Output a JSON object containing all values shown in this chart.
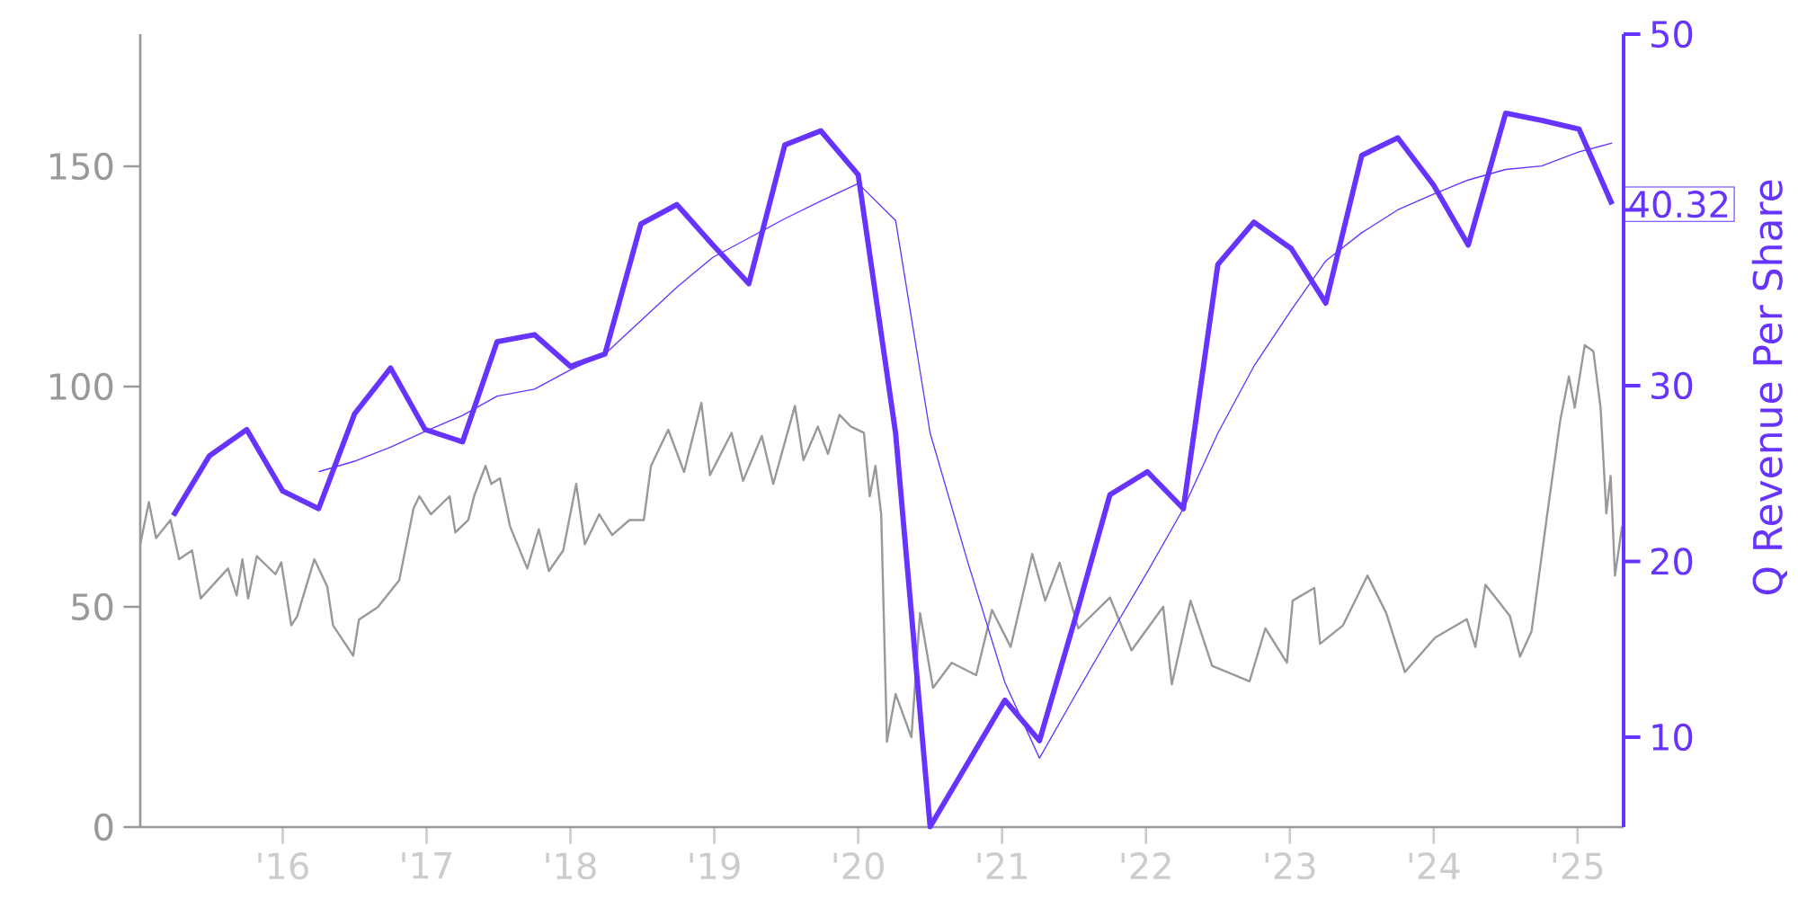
{
  "chart_data": {
    "type": "line",
    "y2label": "Q Revenue Per Share",
    "xlim": [
      2015.01,
      2025.32
    ],
    "ylim": [
      0,
      180
    ],
    "y2lim": [
      4.88,
      50
    ],
    "xticks": [
      {
        "value": 2016,
        "label": "'16"
      },
      {
        "value": 2017,
        "label": "'17"
      },
      {
        "value": 2018,
        "label": "'18"
      },
      {
        "value": 2019,
        "label": "'19"
      },
      {
        "value": 2020,
        "label": "'20"
      },
      {
        "value": 2021,
        "label": "'21"
      },
      {
        "value": 2022,
        "label": "'22"
      },
      {
        "value": 2023,
        "label": "'23"
      },
      {
        "value": 2024,
        "label": "'24"
      },
      {
        "value": 2025,
        "label": "'25"
      }
    ],
    "yticks": [
      0,
      50,
      100,
      150
    ],
    "y2ticks": [
      10,
      20,
      30,
      {
        "value": 40,
        "label": null
      },
      50
    ],
    "marker": "none",
    "line_style": "solid",
    "grid": false,
    "series": [
      {
        "axis": "y",
        "color": "#999999",
        "x": [
          2015.01,
          2015.07,
          2015.12,
          2015.22,
          2015.28,
          2015.37,
          2015.43,
          2015.62,
          2015.68,
          2015.72,
          2015.76,
          2015.82,
          2015.95,
          2015.99,
          2016.06,
          2016.1,
          2016.22,
          2016.31,
          2016.35,
          2016.49,
          2016.53,
          2016.66,
          2016.81,
          2016.91,
          2016.95,
          2017.03,
          2017.16,
          2017.2,
          2017.29,
          2017.33,
          2017.41,
          2017.45,
          2017.51,
          2017.58,
          2017.7,
          2017.78,
          2017.85,
          2017.95,
          2018.04,
          2018.1,
          2018.2,
          2018.29,
          2018.41,
          2018.51,
          2018.56,
          2018.68,
          2018.79,
          2018.91,
          2018.97,
          2019.12,
          2019.2,
          2019.33,
          2019.41,
          2019.56,
          2019.62,
          2019.72,
          2019.79,
          2019.87,
          2019.95,
          2020.04,
          2020.08,
          2020.12,
          2020.16,
          2020.2,
          2020.26,
          2020.37,
          2020.43,
          2020.52,
          2020.65,
          2020.82,
          2020.93,
          2021.06,
          2021.21,
          2021.3,
          2021.4,
          2021.53,
          2021.75,
          2021.9,
          2022.12,
          2022.18,
          2022.31,
          2022.46,
          2022.72,
          2022.83,
          2022.98,
          2023.02,
          2023.17,
          2023.21,
          2023.37,
          2023.54,
          2023.67,
          2023.8,
          2024.01,
          2024.23,
          2024.29,
          2024.36,
          2024.53,
          2024.6,
          2024.68,
          2024.79,
          2024.88,
          2024.94,
          2024.98,
          2025.05,
          2025.11,
          2025.16,
          2025.2,
          2025.23,
          2025.26,
          2025.31
        ],
        "values": [
          64.2,
          73.8,
          65.6,
          69.7,
          60.8,
          62.8,
          51.9,
          58.7,
          52.6,
          60.8,
          51.9,
          61.5,
          57.4,
          60.1,
          45.8,
          47.8,
          60.8,
          54.6,
          45.8,
          38.9,
          47.1,
          49.9,
          56.0,
          72.4,
          75.1,
          71.0,
          75.1,
          66.9,
          69.7,
          75.1,
          82.0,
          77.9,
          79.2,
          68.3,
          58.7,
          67.6,
          58.1,
          62.8,
          77.9,
          64.2,
          71.0,
          66.3,
          69.7,
          69.7,
          82.0,
          90.2,
          80.6,
          96.3,
          79.9,
          89.5,
          78.6,
          88.8,
          77.9,
          95.6,
          83.3,
          90.9,
          84.7,
          93.6,
          90.9,
          89.5,
          75.1,
          82.0,
          71.0,
          19.4,
          30.2,
          20.4,
          48.6,
          31.6,
          37.3,
          34.5,
          49.3,
          40.9,
          62.0,
          51.4,
          60.0,
          45.1,
          52.1,
          40.1,
          50.0,
          32.4,
          51.4,
          36.6,
          33.1,
          45.1,
          37.3,
          51.4,
          54.3,
          41.6,
          45.8,
          57.1,
          48.6,
          35.2,
          43.0,
          47.2,
          40.9,
          55.0,
          47.9,
          38.7,
          44.4,
          71.2,
          92.4,
          102.3,
          95.2,
          109.4,
          108.0,
          95.2,
          71.2,
          79.7,
          57.1,
          68.4
        ]
      },
      {
        "axis": "y2",
        "color": "#6633ff",
        "x": [
          2016.25,
          2016.5,
          2016.75,
          2016.99,
          2017.25,
          2017.49,
          2017.75,
          2018.0,
          2018.24,
          2018.49,
          2018.74,
          2018.99,
          2019.24,
          2019.49,
          2019.74,
          2020.0,
          2020.26,
          2020.5,
          2020.76,
          2021.02,
          2021.26,
          2021.51,
          2021.75,
          2022.01,
          2022.26,
          2022.5,
          2022.75,
          2023.01,
          2023.25,
          2023.5,
          2023.75,
          2024.0,
          2024.24,
          2024.5,
          2024.75,
          2025.01,
          2025.24
        ],
        "values": [
          25.1,
          25.7,
          26.5,
          27.4,
          28.3,
          29.4,
          29.8,
          30.9,
          31.8,
          33.7,
          35.6,
          37.3,
          38.4,
          39.5,
          40.5,
          41.5,
          39.4,
          27.3,
          20.0,
          13.1,
          8.8,
          12.4,
          15.8,
          19.4,
          23.0,
          27.3,
          31.1,
          34.3,
          37.1,
          38.7,
          40.0,
          40.9,
          41.7,
          42.3,
          42.5,
          43.3,
          43.8
        ]
      },
      {
        "axis": "y2",
        "color": "#6633ff",
        "x": [
          2015.24,
          2015.49,
          2015.75,
          2016.0,
          2016.25,
          2016.5,
          2016.75,
          2016.99,
          2017.25,
          2017.49,
          2017.75,
          2018.0,
          2018.24,
          2018.49,
          2018.74,
          2018.99,
          2019.24,
          2019.49,
          2019.74,
          2020.0,
          2020.26,
          2020.5,
          2020.76,
          2021.02,
          2021.26,
          2021.51,
          2021.75,
          2022.01,
          2022.26,
          2022.5,
          2022.75,
          2023.01,
          2023.25,
          2023.5,
          2023.75,
          2024.0,
          2024.24,
          2024.5,
          2024.75,
          2025.01,
          2025.24
        ],
        "values": [
          22.6,
          26.0,
          27.5,
          24.0,
          23.0,
          28.4,
          31.0,
          27.5,
          26.8,
          32.5,
          32.9,
          31.1,
          31.8,
          39.2,
          40.3,
          38.0,
          35.8,
          43.7,
          44.5,
          42.0,
          27.3,
          4.9,
          8.5,
          12.1,
          9.8,
          16.8,
          23.8,
          25.1,
          23.0,
          36.9,
          39.3,
          37.8,
          34.7,
          43.1,
          44.1,
          41.4,
          38.0,
          45.5,
          45.1,
          44.6,
          40.32
        ],
        "value_labels": [
          null,
          null,
          null,
          null,
          null,
          null,
          null,
          null,
          null,
          null,
          null,
          null,
          null,
          null,
          null,
          null,
          null,
          null,
          null,
          null,
          null,
          null,
          null,
          null,
          null,
          null,
          null,
          null,
          null,
          null,
          null,
          null,
          null,
          null,
          null,
          null,
          null,
          null,
          null,
          null,
          "40.32"
        ]
      }
    ]
  }
}
